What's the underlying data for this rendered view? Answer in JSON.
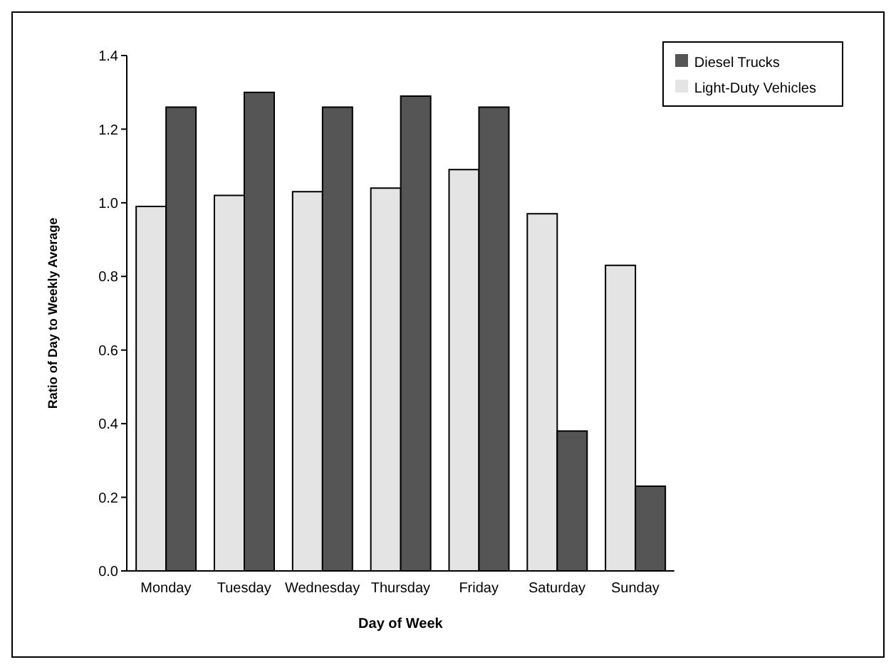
{
  "chart_data": {
    "type": "bar",
    "xlabel": "Day of Week",
    "ylabel": "Ratio of Day to Weekly Average",
    "categories": [
      "Monday",
      "Tuesday",
      "Wednesday",
      "Thursday",
      "Friday",
      "Saturday",
      "Sunday"
    ],
    "series": [
      {
        "name": "Light-Duty Vehicles",
        "color": "#e4e4e4",
        "values": [
          0.99,
          1.02,
          1.03,
          1.04,
          1.09,
          0.97,
          0.83
        ]
      },
      {
        "name": "Diesel Trucks",
        "color": "#555555",
        "values": [
          1.26,
          1.3,
          1.26,
          1.29,
          1.26,
          0.38,
          0.23
        ]
      }
    ],
    "ylim": [
      0,
      1.4
    ],
    "yticks": [
      {
        "value": 0,
        "label": "0.0"
      },
      {
        "value": 0.2,
        "label": "0.2"
      },
      {
        "value": 0.4,
        "label": "0.4"
      },
      {
        "value": 0.6,
        "label": "0.6"
      },
      {
        "value": 0.8,
        "label": "0.8"
      },
      {
        "value": 1,
        "label": "1.0"
      },
      {
        "value": 1.2,
        "label": "1.2"
      },
      {
        "value": 1.4,
        "label": "1.4"
      }
    ],
    "grid": false,
    "legend": "top right"
  }
}
